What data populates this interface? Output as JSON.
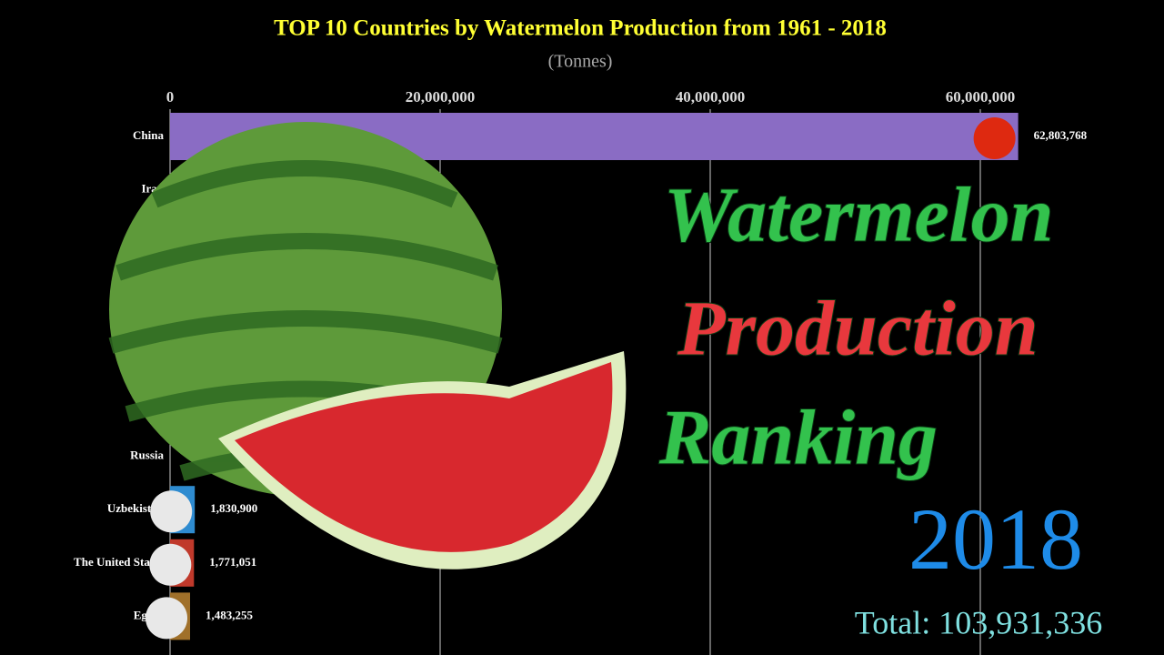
{
  "chart_data": {
    "type": "bar",
    "orientation": "horizontal",
    "title": "TOP 10 Countries by Watermelon Production from 1961 - 2018",
    "subtitle": "(Tonnes)",
    "categories": [
      "China",
      "Iran",
      null,
      null,
      null,
      null,
      "Russia",
      "Uzbekistan",
      "The United States",
      "Egypt"
    ],
    "values": [
      62803768,
      null,
      null,
      null,
      null,
      null,
      null,
      1830900,
      1771051,
      1483255
    ],
    "value_labels": [
      "62,803,768",
      null,
      null,
      null,
      null,
      null,
      null,
      "1,830,900",
      "1,771,051",
      "1,483,255"
    ],
    "colors": [
      "#8a6cc4",
      "#3aa655",
      "#d9534f",
      "#e0a030",
      "#5b8fd8",
      "#c06090",
      "#4fb0b0",
      "#2e8bd0",
      "#c0392b",
      "#a0702a"
    ],
    "xlim": [
      0,
      60000000
    ],
    "xticks": [
      0,
      {
        "value": 20000000,
        "label": "20,000,000"
      },
      {
        "value": 40000000,
        "label": "40,000,000"
      },
      {
        "value": 60000000,
        "label": "60,000,000"
      }
    ],
    "grid": true,
    "headline": [
      "Watermelon",
      "Production",
      "Ranking"
    ],
    "year": "2018",
    "total": "Total: 103,931,336"
  }
}
